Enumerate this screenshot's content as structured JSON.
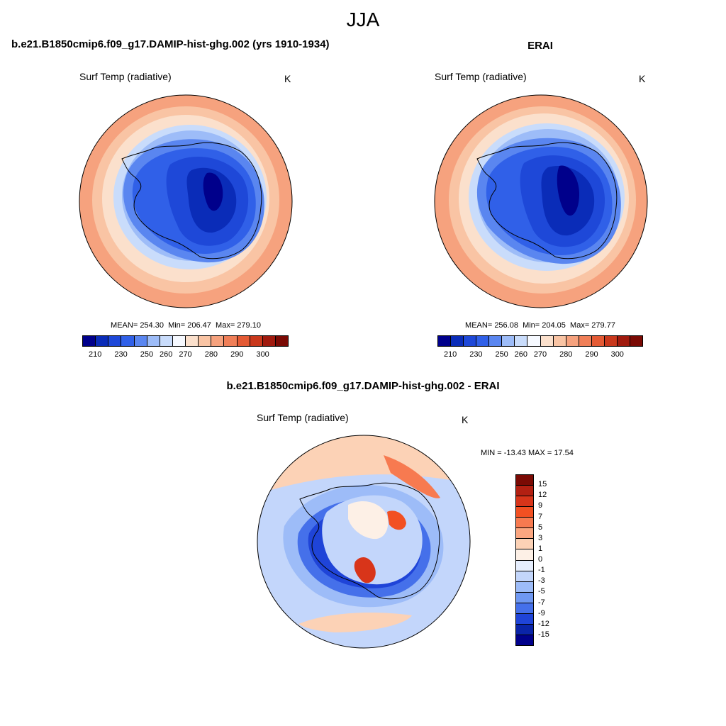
{
  "season": "JJA",
  "panels": [
    {
      "title": "b.e21.B1850cmip6.f09_g17.DAMIP-hist-ghg.002 (yrs 1910-1934)",
      "variable": "Surf Temp (radiative)",
      "units": "K",
      "stats": "MEAN= 254.30  Min= 206.47  Max= 279.10"
    },
    {
      "title": "ERAI",
      "variable": "Surf Temp (radiative)",
      "units": "K",
      "stats": "MEAN= 256.08  Min= 204.05  Max= 279.77"
    },
    {
      "title": "b.e21.B1850cmip6.f09_g17.DAMIP-hist-ghg.002 - ERAI",
      "variable": "Surf Temp (radiative)",
      "units": "K",
      "stats": "MIN = -13.43 MAX =  17.54"
    }
  ],
  "abs_colorbar": {
    "labels": [
      "210",
      "230",
      "250",
      "260",
      "270",
      "280",
      "290",
      "300"
    ],
    "colors": [
      "#00008b",
      "#0a2cb8",
      "#1e48d8",
      "#3060e8",
      "#5a86f0",
      "#9dbcf8",
      "#c9dcfb",
      "#f6f9ff",
      "#fbe0cc",
      "#f9c4a4",
      "#f6a27e",
      "#f07f58",
      "#e45a34",
      "#c9381c",
      "#a01a0e",
      "#7a0a04"
    ]
  },
  "diff_colorbar": {
    "labels": [
      "15",
      "12",
      "9",
      "7",
      "5",
      "3",
      "1",
      "0",
      "-1",
      "-3",
      "-5",
      "-7",
      "-9",
      "-12",
      "-15"
    ],
    "colors": [
      "#7a0a04",
      "#b32012",
      "#d8351a",
      "#f25022",
      "#f77a50",
      "#fba680",
      "#fcd2b6",
      "#fdf0e6",
      "#e6eefd",
      "#c3d6fb",
      "#9dbcf8",
      "#6f98f2",
      "#4570ea",
      "#1f44d8",
      "#0a24a8",
      "#00008b"
    ]
  }
}
